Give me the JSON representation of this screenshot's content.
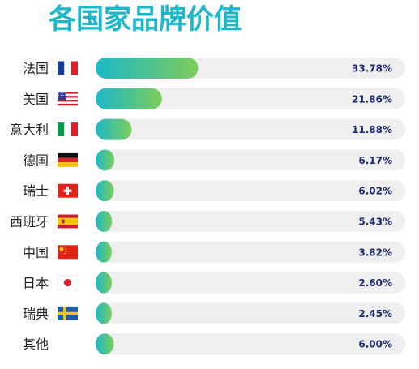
{
  "chart_data": {
    "type": "bar",
    "orientation": "horizontal",
    "title": "各国家品牌价值",
    "categories": [
      "法国",
      "美国",
      "意大利",
      "德国",
      "瑞士",
      "西班牙",
      "中国",
      "日本",
      "瑞典",
      "其他"
    ],
    "flags": [
      "france-flag",
      "usa-flag",
      "italy-flag",
      "germany-flag",
      "switzerland-flag",
      "spain-flag",
      "china-flag",
      "japan-flag",
      "sweden-flag",
      ""
    ],
    "values": [
      33.78,
      21.86,
      11.88,
      6.17,
      6.02,
      5.43,
      3.82,
      2.6,
      2.45,
      6.0
    ],
    "value_labels": [
      "33.78%",
      "21.86%",
      "11.88%",
      "6.17%",
      "6.02%",
      "5.43%",
      "3.82%",
      "2.60%",
      "2.45%",
      "6.00%"
    ],
    "unit": "%",
    "xlim": [
      0,
      100
    ],
    "grid": false,
    "colors": {
      "bar_start": "#1cb8c9",
      "bar_end": "#7ccd5a",
      "track": "#efefef",
      "label": "#1b2a6b",
      "category": "#222222",
      "title": "#1cb8c9"
    }
  }
}
